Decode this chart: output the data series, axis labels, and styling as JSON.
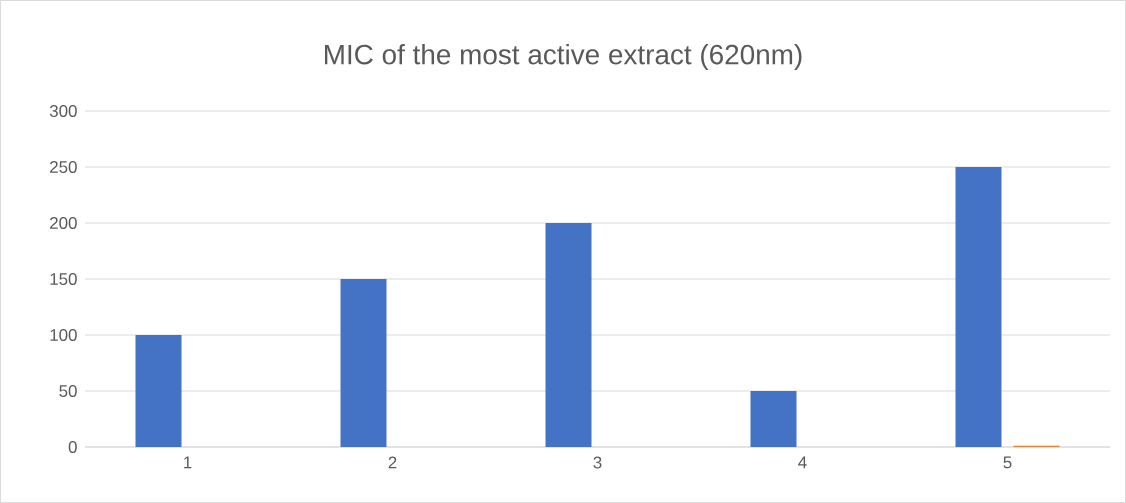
{
  "chart_data": {
    "type": "bar",
    "title": "MIC of the most active extract (620nm)",
    "categories": [
      "1",
      "2",
      "3",
      "4",
      "5"
    ],
    "series": [
      {
        "color": "#4472c4",
        "values": [
          100,
          150,
          200,
          50,
          250
        ]
      },
      {
        "color": "#ed7d31",
        "values": [
          0,
          0,
          0,
          0,
          1
        ]
      }
    ],
    "ylim": [
      0,
      300
    ],
    "yticks": [
      0,
      50,
      100,
      150,
      200,
      250,
      300
    ],
    "grid": "y"
  }
}
